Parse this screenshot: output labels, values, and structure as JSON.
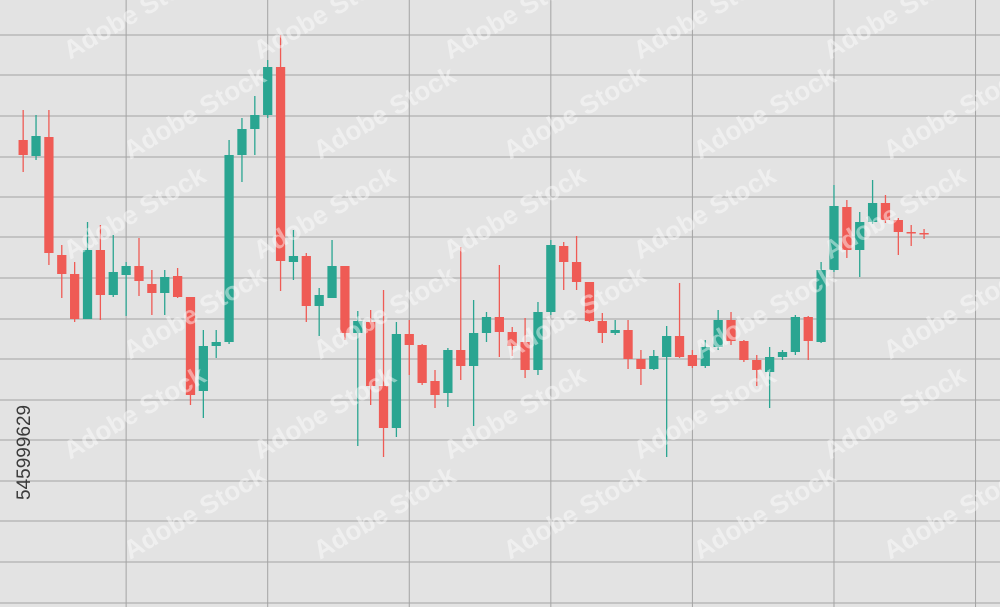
{
  "chart_data": {
    "type": "candlestick",
    "watermark": "Adobe Stock",
    "stock_id": "545999629",
    "x": [
      1,
      2,
      3,
      4,
      5,
      6,
      7,
      8,
      9,
      10,
      11,
      12,
      13,
      14,
      15,
      16,
      17,
      18,
      19,
      20,
      21,
      22,
      23,
      24,
      25,
      26,
      27,
      28,
      29,
      30,
      31,
      32,
      33,
      34,
      35,
      36,
      37,
      38,
      39,
      40,
      41,
      42,
      43,
      44,
      45,
      46,
      47,
      48,
      49,
      50,
      51,
      52,
      53,
      54,
      55,
      56,
      57,
      58,
      59,
      60,
      61,
      62,
      63,
      64,
      65,
      66,
      67,
      68,
      69,
      70,
      71
    ],
    "open": [
      467,
      451,
      470,
      352,
      333,
      288,
      357,
      312,
      332,
      341,
      323,
      314,
      331,
      310,
      216,
      261,
      265,
      452,
      478,
      492,
      540,
      345,
      351,
      301,
      309,
      341,
      274,
      285,
      221,
      179,
      273,
      262,
      226,
      214,
      257,
      241,
      274,
      290,
      275,
      265,
      237,
      295,
      361,
      345,
      325,
      286,
      274,
      277,
      248,
      238,
      250,
      271,
      252,
      241,
      260,
      287,
      266,
      247,
      235,
      250,
      255,
      290,
      265,
      337,
      400,
      357,
      385,
      404,
      387,
      375,
      374
    ],
    "high": [
      497,
      492,
      497,
      362,
      345,
      385,
      382,
      372,
      345,
      369,
      337,
      337,
      339,
      310,
      277,
      277,
      467,
      489,
      511,
      547,
      572,
      377,
      354,
      319,
      367,
      341,
      296,
      297,
      317,
      285,
      287,
      263,
      237,
      259,
      360,
      307,
      295,
      342,
      280,
      289,
      305,
      367,
      365,
      371,
      325,
      294,
      287,
      287,
      257,
      257,
      281,
      324,
      257,
      267,
      297,
      295,
      267,
      252,
      260,
      257,
      292,
      291,
      345,
      422,
      407,
      395,
      427,
      412,
      389,
      382,
      378
    ],
    "low": [
      435,
      447,
      342,
      309,
      285,
      288,
      287,
      310,
      291,
      311,
      292,
      292,
      309,
      202,
      189,
      249,
      263,
      425,
      452,
      489,
      316,
      327,
      285,
      271,
      309,
      267,
      161,
      202,
      150,
      170,
      232,
      222,
      199,
      200,
      227,
      181,
      265,
      250,
      251,
      229,
      232,
      292,
      317,
      317,
      285,
      264,
      272,
      238,
      222,
      237,
      150,
      249,
      239,
      239,
      257,
      262,
      245,
      221,
      199,
      247,
      252,
      247,
      264,
      335,
      349,
      330,
      383,
      384,
      352,
      361,
      368
    ],
    "close": [
      452,
      471,
      354,
      333,
      288,
      357,
      312,
      335,
      341,
      326,
      314,
      330,
      310,
      212,
      261,
      265,
      452,
      478,
      492,
      540,
      346,
      351,
      301,
      312,
      341,
      274,
      286,
      221,
      179,
      273,
      262,
      224,
      212,
      257,
      241,
      274,
      290,
      275,
      261,
      237,
      295,
      362,
      345,
      325,
      286,
      274,
      277,
      248,
      238,
      251,
      271,
      250,
      241,
      260,
      287,
      266,
      247,
      237,
      250,
      255,
      290,
      266,
      337,
      401,
      357,
      385,
      404,
      387,
      375,
      374,
      373
    ],
    "up_color": "#2aa591",
    "down_color": "#ef5b55",
    "xlim": [
      -0.8,
      76.9
    ],
    "ylim": [
      0,
      607
    ],
    "xticks": [
      9,
      20,
      31,
      42,
      53,
      64,
      75
    ],
    "yticks": [
      4,
      45,
      86,
      126,
      167,
      207,
      248,
      288,
      329,
      370,
      410,
      450,
      491,
      532,
      572
    ],
    "grid": true
  }
}
